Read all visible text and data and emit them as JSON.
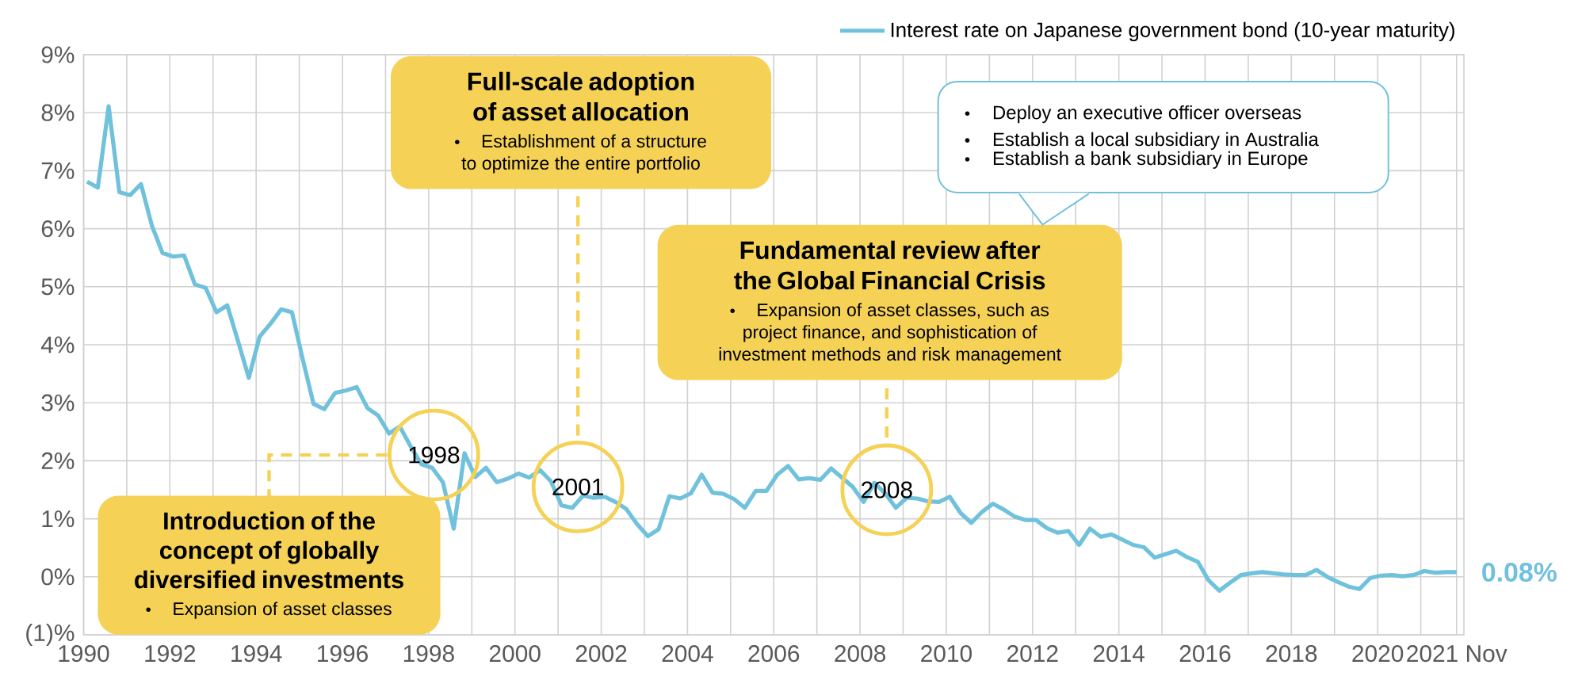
{
  "chart_data": {
    "type": "line",
    "grid": true,
    "legend": "top right",
    "x": [
      "1990-02",
      "1990-05",
      "1990-08",
      "1990-11",
      "1991-02",
      "1991-05",
      "1991-08",
      "1991-11",
      "1992-02",
      "1992-05",
      "1992-08",
      "1992-11",
      "1993-02",
      "1993-05",
      "1993-08",
      "1993-11",
      "1994-02",
      "1994-05",
      "1994-08",
      "1994-11",
      "1995-02",
      "1995-05",
      "1995-08",
      "1995-11",
      "1996-02",
      "1996-05",
      "1996-08",
      "1996-11",
      "1997-02",
      "1997-05",
      "1997-08",
      "1997-11",
      "1998-02",
      "1998-05",
      "1998-08",
      "1998-11",
      "1999-02",
      "1999-05",
      "1999-08",
      "1999-11",
      "2000-02",
      "2000-05",
      "2000-08",
      "2000-11",
      "2001-02",
      "2001-05",
      "2001-08",
      "2001-11",
      "2002-02",
      "2002-05",
      "2002-08",
      "2002-11",
      "2003-02",
      "2003-05",
      "2003-08",
      "2003-11",
      "2004-02",
      "2004-05",
      "2004-08",
      "2004-11",
      "2005-02",
      "2005-05",
      "2005-08",
      "2005-11",
      "2006-02",
      "2006-05",
      "2006-08",
      "2006-11",
      "2007-02",
      "2007-05",
      "2007-08",
      "2007-11",
      "2008-02",
      "2008-05",
      "2008-08",
      "2008-11",
      "2009-02",
      "2009-05",
      "2009-08",
      "2009-11",
      "2010-02",
      "2010-05",
      "2010-08",
      "2010-11",
      "2011-02",
      "2011-05",
      "2011-08",
      "2011-11",
      "2012-02",
      "2012-05",
      "2012-08",
      "2012-11",
      "2013-02",
      "2013-05",
      "2013-08",
      "2013-11",
      "2014-02",
      "2014-05",
      "2014-08",
      "2014-11",
      "2015-02",
      "2015-05",
      "2015-08",
      "2015-11",
      "2016-02",
      "2016-05",
      "2016-08",
      "2016-11",
      "2017-02",
      "2017-05",
      "2017-08",
      "2017-11",
      "2018-02",
      "2018-05",
      "2018-08",
      "2018-11",
      "2019-02",
      "2019-05",
      "2019-08",
      "2019-11",
      "2020-02",
      "2020-05",
      "2020-08",
      "2020-11",
      "2021-02",
      "2021-05",
      "2021-08",
      "2021-11"
    ],
    "series": [
      {
        "name": "Interest rate on Japanese government bond (10-year maturity)",
        "color": "#70c1dc",
        "values": [
          6.81,
          6.71,
          8.11,
          6.63,
          6.58,
          6.77,
          6.06,
          5.58,
          5.52,
          5.54,
          5.04,
          4.98,
          4.56,
          4.68,
          4.06,
          3.43,
          4.14,
          4.36,
          4.61,
          4.56,
          3.75,
          2.98,
          2.89,
          3.17,
          3.21,
          3.27,
          2.91,
          2.78,
          2.47,
          2.59,
          2.25,
          1.94,
          1.88,
          1.63,
          0.83,
          2.13,
          1.72,
          1.88,
          1.63,
          1.69,
          1.78,
          1.71,
          1.84,
          1.65,
          1.23,
          1.19,
          1.4,
          1.36,
          1.38,
          1.29,
          1.17,
          0.91,
          0.7,
          0.82,
          1.39,
          1.35,
          1.44,
          1.76,
          1.45,
          1.43,
          1.34,
          1.19,
          1.48,
          1.48,
          1.76,
          1.91,
          1.68,
          1.7,
          1.67,
          1.87,
          1.71,
          1.55,
          1.29,
          1.62,
          1.44,
          1.19,
          1.36,
          1.35,
          1.3,
          1.29,
          1.38,
          1.1,
          0.93,
          1.12,
          1.26,
          1.16,
          1.04,
          0.98,
          0.98,
          0.84,
          0.76,
          0.79,
          0.55,
          0.83,
          0.69,
          0.73,
          0.64,
          0.55,
          0.51,
          0.33,
          0.39,
          0.45,
          0.34,
          0.26,
          -0.06,
          -0.24,
          -0.1,
          0.03,
          0.06,
          0.08,
          0.06,
          0.04,
          0.03,
          0.03,
          0.12,
          0.0,
          -0.09,
          -0.17,
          -0.21,
          -0.02,
          0.02,
          0.03,
          0.01,
          0.03,
          0.1,
          0.07,
          0.08,
          0.08
        ]
      }
    ],
    "xlim": [
      "1990",
      "2022"
    ],
    "xticks": [
      "1990",
      {
        "value": "1991",
        "label": null
      },
      "1992",
      {
        "value": "1993",
        "label": null
      },
      "1994",
      {
        "value": "1995",
        "label": null
      },
      "1996",
      {
        "value": "1997",
        "label": null
      },
      "1998",
      {
        "value": "1999",
        "label": null
      },
      "2000",
      {
        "value": "2001",
        "label": null
      },
      "2002",
      {
        "value": "2003",
        "label": null
      },
      "2004",
      {
        "value": "2005",
        "label": null
      },
      "2006",
      {
        "value": "2007",
        "label": null
      },
      "2008",
      {
        "value": "2009",
        "label": null
      },
      "2010",
      {
        "value": "2011",
        "label": null
      },
      "2012",
      {
        "value": "2013",
        "label": null
      },
      "2014",
      {
        "value": "2015",
        "label": null
      },
      "2016",
      {
        "value": "2017",
        "label": null
      },
      "2018",
      {
        "value": "2019",
        "label": null
      },
      "2020",
      {
        "value": "2021",
        "label": null
      },
      {
        "value": "2021-11",
        "label": "2021 Nov"
      }
    ],
    "ylim": [
      -1,
      9
    ],
    "yticks": [
      {
        "value": -1,
        "label": "(1)%"
      },
      {
        "value": 0,
        "label": "0%"
      },
      {
        "value": 1,
        "label": "1%"
      },
      {
        "value": 2,
        "label": "2%"
      },
      {
        "value": 3,
        "label": "3%"
      },
      {
        "value": 4,
        "label": "4%"
      },
      {
        "value": 5,
        "label": "5%"
      },
      {
        "value": 6,
        "label": "6%"
      },
      {
        "value": 7,
        "label": "7%"
      },
      {
        "value": 8,
        "label": "8%"
      },
      {
        "value": 9,
        "label": "9%"
      }
    ],
    "annotations": [
      "1998",
      "2001",
      "2008",
      {
        "text": "0.08%",
        "x": "2021-11",
        "y": 0.08
      },
      "Introduction of the concept of globally diversified investments",
      "Expansion of asset classes",
      "Full-scale adoption of asset allocation",
      "Establishment of a structure to optimize the entire portfolio",
      "Fundamental review after the Global Financial Crisis",
      "Expansion of asset classes, such as project finance, and sophistication of investment methods and risk management",
      "Deploy an executive officer overseas",
      "Establish a local subsidiary in Australia",
      "Establish a bank subsidiary in Europe"
    ]
  }
}
